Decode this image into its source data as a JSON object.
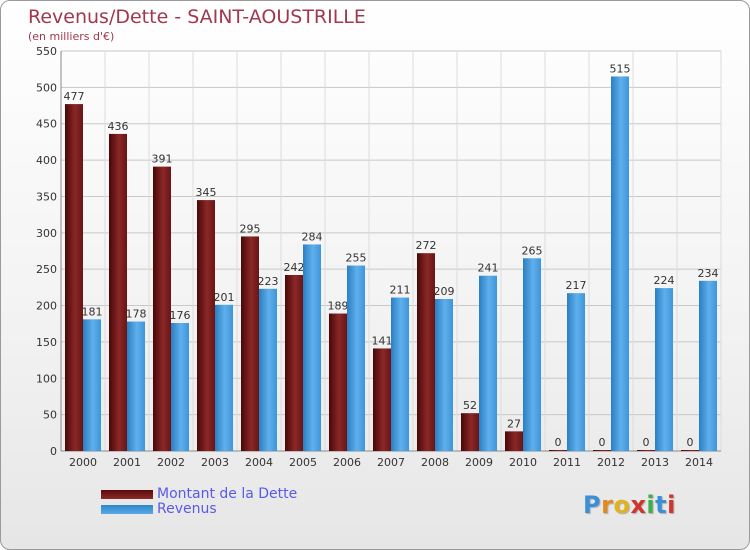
{
  "chart_data": {
    "type": "bar",
    "title": "Revenus/Dette - SAINT-AOUSTRILLE",
    "subtitle": "(en milliers d'€)",
    "categories": [
      "2000",
      "2001",
      "2002",
      "2003",
      "2004",
      "2005",
      "2006",
      "2007",
      "2008",
      "2009",
      "2010",
      "2011",
      "2012",
      "2013",
      "2014"
    ],
    "series": [
      {
        "name": "Montant de la Dette",
        "color": "#7a1a1a",
        "values": [
          477,
          436,
          391,
          345,
          295,
          242,
          189,
          141,
          272,
          52,
          27,
          0,
          0,
          0,
          0
        ]
      },
      {
        "name": "Revenus",
        "color": "#3d95d8",
        "values": [
          181,
          178,
          176,
          201,
          223,
          284,
          255,
          211,
          209,
          241,
          265,
          217,
          515,
          224,
          234
        ]
      }
    ],
    "yticks": [
      0,
      50,
      100,
      150,
      200,
      250,
      300,
      350,
      400,
      450,
      500,
      550
    ],
    "ylim": [
      0,
      550
    ],
    "grid": true,
    "legend": "bottom-left"
  },
  "logo": {
    "text": "Proxiti"
  }
}
